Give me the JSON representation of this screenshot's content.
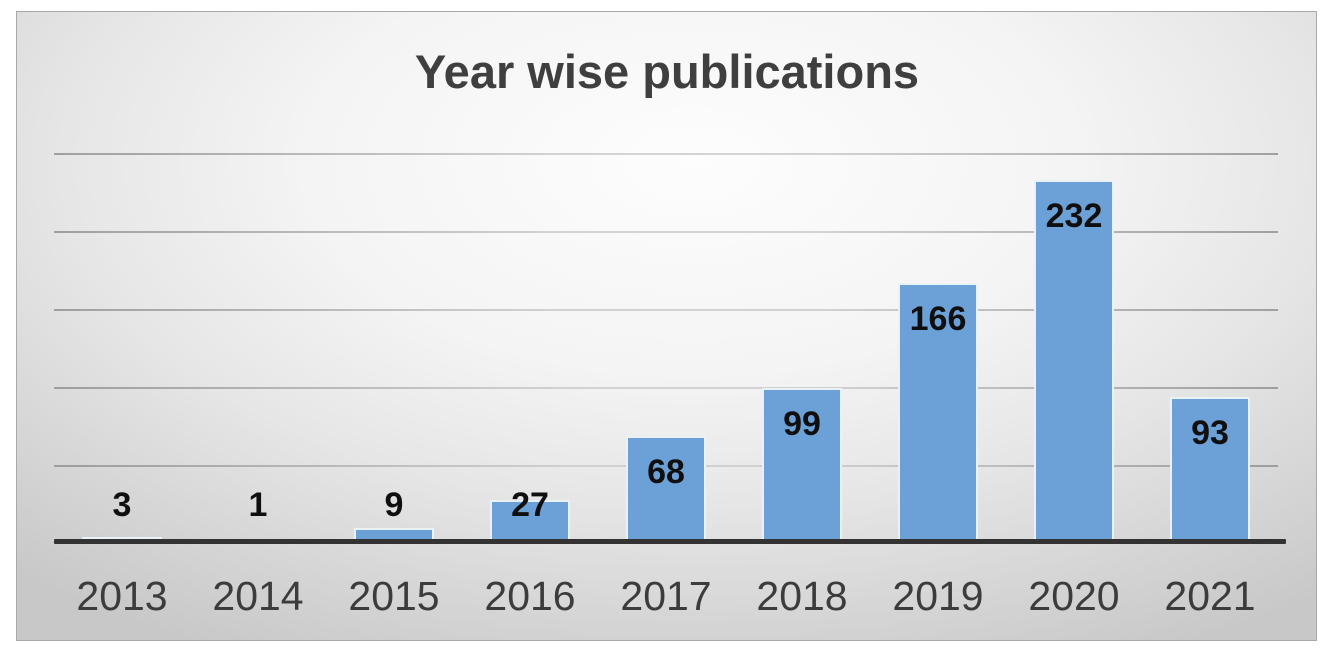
{
  "chart_data": {
    "type": "bar",
    "title": "Year wise publications",
    "categories": [
      "2013",
      "2014",
      "2015",
      "2016",
      "2017",
      "2018",
      "2019",
      "2020",
      "2021"
    ],
    "values": [
      3,
      1,
      9,
      27,
      68,
      99,
      166,
      232,
      93
    ],
    "xlabel": "",
    "ylabel": "",
    "ylim": [
      0,
      250
    ],
    "gridline_step": 50,
    "grid": true,
    "legend": false,
    "y_tick_labels_visible": false,
    "data_labels_visible": true,
    "colors": {
      "bar_fill": "#6CA1D8",
      "bar_border": "#E9F1F9",
      "data_label": "#0F0F0F",
      "axis_line": "#333333",
      "gridline_dark": "#8E8E8E",
      "gridline_light": "#C9C9C9",
      "title": "#3F3F3F",
      "tick_label": "#3C3C3C"
    }
  }
}
